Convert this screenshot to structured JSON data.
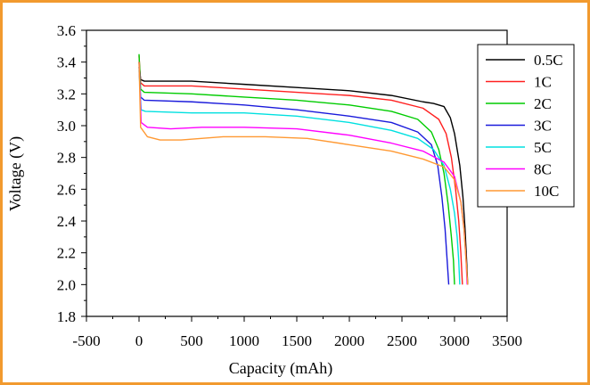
{
  "chart_data": {
    "type": "line",
    "xlabel": "Capacity (mAh)",
    "ylabel": "Voltage (V)",
    "xlim": [
      -500,
      3500
    ],
    "ylim": [
      1.8,
      3.6
    ],
    "xticks": [
      -500,
      0,
      500,
      1000,
      1500,
      2000,
      2500,
      3000,
      3500
    ],
    "yticks": [
      1.8,
      2.0,
      2.2,
      2.4,
      2.6,
      2.8,
      3.0,
      3.2,
      3.4,
      3.6
    ],
    "xtick_labels": [
      "-500",
      "0",
      "500",
      "1000",
      "1500",
      "2000",
      "2500",
      "3000",
      "3500"
    ],
    "ytick_labels": [
      "1.8",
      "2.0",
      "2.2",
      "2.4",
      "2.6",
      "2.8",
      "3.0",
      "3.2",
      "3.4",
      "3.6"
    ],
    "grid": false,
    "legend_position": "top-right",
    "frame_color": "#f29a2e",
    "series": [
      {
        "name": "0.5C",
        "color": "#000000",
        "points": [
          [
            0,
            3.4
          ],
          [
            15,
            3.29
          ],
          [
            50,
            3.28
          ],
          [
            500,
            3.28
          ],
          [
            1000,
            3.26
          ],
          [
            1500,
            3.24
          ],
          [
            2000,
            3.22
          ],
          [
            2400,
            3.19
          ],
          [
            2700,
            3.15
          ],
          [
            2800,
            3.14
          ],
          [
            2900,
            3.12
          ],
          [
            2960,
            3.05
          ],
          [
            3000,
            2.95
          ],
          [
            3050,
            2.75
          ],
          [
            3080,
            2.55
          ],
          [
            3100,
            2.35
          ],
          [
            3115,
            2.15
          ],
          [
            3125,
            2.0
          ]
        ]
      },
      {
        "name": "1C",
        "color": "#ff2020",
        "points": [
          [
            0,
            3.44
          ],
          [
            15,
            3.27
          ],
          [
            50,
            3.25
          ],
          [
            500,
            3.25
          ],
          [
            1000,
            3.23
          ],
          [
            1500,
            3.21
          ],
          [
            2000,
            3.19
          ],
          [
            2400,
            3.16
          ],
          [
            2700,
            3.11
          ],
          [
            2850,
            3.04
          ],
          [
            2920,
            2.95
          ],
          [
            2970,
            2.8
          ],
          [
            3010,
            2.6
          ],
          [
            3040,
            2.4
          ],
          [
            3060,
            2.2
          ],
          [
            3075,
            2.0
          ]
        ]
      },
      {
        "name": "2C",
        "color": "#00cc00",
        "points": [
          [
            0,
            3.45
          ],
          [
            15,
            3.23
          ],
          [
            50,
            3.21
          ],
          [
            500,
            3.2
          ],
          [
            1000,
            3.18
          ],
          [
            1500,
            3.16
          ],
          [
            2000,
            3.13
          ],
          [
            2400,
            3.09
          ],
          [
            2650,
            3.04
          ],
          [
            2780,
            2.96
          ],
          [
            2850,
            2.85
          ],
          [
            2900,
            2.7
          ],
          [
            2940,
            2.5
          ],
          [
            2970,
            2.3
          ],
          [
            2990,
            2.15
          ],
          [
            3000,
            2.0
          ]
        ]
      },
      {
        "name": "3C",
        "color": "#1a1adb",
        "points": [
          [
            0,
            3.37
          ],
          [
            15,
            3.18
          ],
          [
            50,
            3.16
          ],
          [
            500,
            3.15
          ],
          [
            1000,
            3.13
          ],
          [
            1500,
            3.1
          ],
          [
            2000,
            3.06
          ],
          [
            2400,
            3.02
          ],
          [
            2650,
            2.96
          ],
          [
            2780,
            2.88
          ],
          [
            2840,
            2.75
          ],
          [
            2880,
            2.55
          ],
          [
            2910,
            2.35
          ],
          [
            2930,
            2.15
          ],
          [
            2945,
            2.0
          ]
        ]
      },
      {
        "name": "5C",
        "color": "#00e0e0",
        "points": [
          [
            0,
            3.35
          ],
          [
            20,
            3.1
          ],
          [
            60,
            3.09
          ],
          [
            500,
            3.08
          ],
          [
            1000,
            3.08
          ],
          [
            1500,
            3.06
          ],
          [
            2000,
            3.02
          ],
          [
            2400,
            2.97
          ],
          [
            2650,
            2.92
          ],
          [
            2800,
            2.85
          ],
          [
            2900,
            2.75
          ],
          [
            2960,
            2.6
          ],
          [
            3000,
            2.45
          ],
          [
            3025,
            2.3
          ],
          [
            3040,
            2.15
          ],
          [
            3050,
            2.0
          ]
        ]
      },
      {
        "name": "8C",
        "color": "#ff00ff",
        "points": [
          [
            0,
            3.4
          ],
          [
            20,
            3.02
          ],
          [
            80,
            2.99
          ],
          [
            300,
            2.98
          ],
          [
            600,
            2.99
          ],
          [
            1000,
            2.99
          ],
          [
            1500,
            2.98
          ],
          [
            2000,
            2.94
          ],
          [
            2400,
            2.89
          ],
          [
            2700,
            2.84
          ],
          [
            2900,
            2.77
          ],
          [
            3000,
            2.68
          ],
          [
            3060,
            2.52
          ],
          [
            3090,
            2.35
          ],
          [
            3110,
            2.15
          ],
          [
            3120,
            2.0
          ]
        ]
      },
      {
        "name": "10C",
        "color": "#ff9933",
        "points": [
          [
            0,
            3.4
          ],
          [
            15,
            2.99
          ],
          [
            80,
            2.93
          ],
          [
            200,
            2.91
          ],
          [
            400,
            2.91
          ],
          [
            800,
            2.93
          ],
          [
            1200,
            2.93
          ],
          [
            1600,
            2.92
          ],
          [
            2000,
            2.88
          ],
          [
            2400,
            2.84
          ],
          [
            2700,
            2.79
          ],
          [
            2900,
            2.74
          ],
          [
            3000,
            2.66
          ],
          [
            3060,
            2.52
          ],
          [
            3090,
            2.35
          ],
          [
            3110,
            2.15
          ],
          [
            3125,
            2.0
          ]
        ]
      }
    ]
  }
}
